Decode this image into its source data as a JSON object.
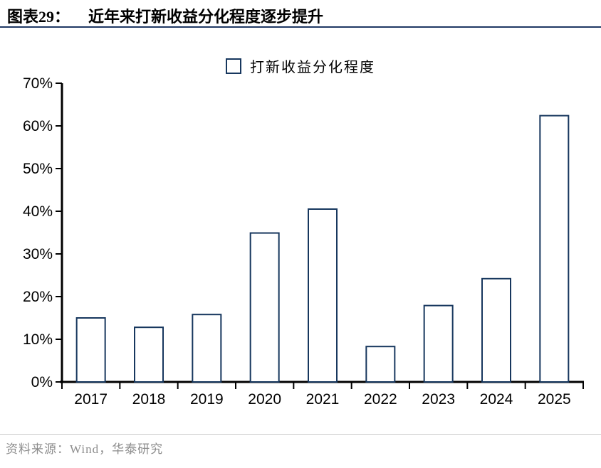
{
  "header": {
    "figure_label": "图表29：",
    "title": "近年来打新收益分化程度逐步提升"
  },
  "legend": {
    "label": "打新收益分化程度"
  },
  "footer": {
    "source": "资料来源：Wind，华泰研究"
  },
  "colors": {
    "bar_outline": "#17375E",
    "bar_fill": "#FFFFFF",
    "axis": "#000000",
    "title_rule": "#1F3864",
    "footer_rule": "#C9C9C9",
    "footer_text": "#8C8C8C"
  },
  "chart_data": {
    "type": "bar",
    "categories": [
      "2017",
      "2018",
      "2019",
      "2020",
      "2021",
      "2022",
      "2023",
      "2024",
      "2025"
    ],
    "values": [
      15.0,
      12.8,
      15.8,
      34.9,
      40.5,
      8.3,
      17.9,
      24.2,
      62.4
    ],
    "title": "近年来打新收益分化程度逐步提升",
    "legend_entries": [
      "打新收益分化程度"
    ],
    "xlabel": "",
    "ylabel": "",
    "ylim": [
      0,
      70
    ],
    "ytick_step": 10,
    "ytick_suffix": "%",
    "grid": false,
    "legend_position": "top-center",
    "bar_style": "hollow"
  }
}
